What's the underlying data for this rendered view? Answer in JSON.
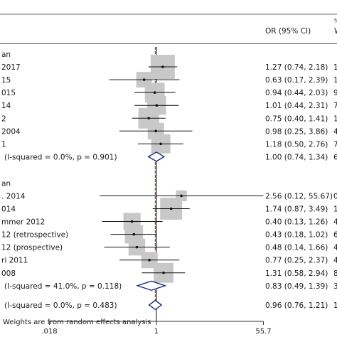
{
  "chart_data": {
    "type": "forest",
    "columns": {
      "estimate_header": "OR (95% CI)",
      "weight_header": "W",
      "weight_header_top": "%"
    },
    "log_scale": true,
    "xlim": [
      0.018,
      55.7
    ],
    "x_ticks": [
      {
        "value": 0.018,
        "label": ".018"
      },
      {
        "value": 1,
        "label": "1"
      },
      {
        "value": 55.7,
        "label": "55.7"
      }
    ],
    "null_line": 1,
    "overall_line": 0.96,
    "groups": [
      {
        "label": "an",
        "studies": [
          {
            "label": "2017",
            "or": 1.27,
            "lo": 0.74,
            "hi": 2.18,
            "ci_text": "1.27 (0.74, 2.18)",
            "weight_text": "1",
            "box": 1.0
          },
          {
            "label": "15",
            "or": 0.63,
            "lo": 0.17,
            "hi": 2.39,
            "ci_text": "0.63 (0.17, 2.39)",
            "weight_text": "1",
            "box": 0.45
          },
          {
            "label": "015",
            "or": 0.94,
            "lo": 0.44,
            "hi": 2.03,
            "ci_text": "0.94 (0.44, 2.03)",
            "weight_text": "9",
            "box": 0.72
          },
          {
            "label": "14",
            "or": 1.01,
            "lo": 0.44,
            "hi": 2.31,
            "ci_text": "1.01 (0.44, 2.31)",
            "weight_text": "7",
            "box": 0.66
          },
          {
            "label": "2",
            "or": 0.75,
            "lo": 0.4,
            "hi": 1.41,
            "ci_text": "0.75 (0.40, 1.41)",
            "weight_text": "1",
            "box": 0.78
          },
          {
            "label": "2004",
            "or": 0.98,
            "lo": 0.25,
            "hi": 3.86,
            "ci_text": "0.98 (0.25, 3.86)",
            "weight_text": "4",
            "box": 0.5
          },
          {
            "label": "1",
            "or": 1.18,
            "lo": 0.5,
            "hi": 2.76,
            "ci_text": "1.18 (0.50, 2.76)",
            "weight_text": "7",
            "box": 0.68
          }
        ],
        "subtotal": {
          "label": "(I-squared = 0.0%, p = 0.901)",
          "or": 1.0,
          "lo": 0.74,
          "hi": 1.34,
          "ci_text": "1.00 (0.74, 1.34)",
          "weight_text": "6"
        }
      },
      {
        "label": "an",
        "studies": [
          {
            "label": ". 2014",
            "or": 2.56,
            "lo": 0.12,
            "hi": 55.67,
            "ci_text": "2.56 (0.12, 55.67)",
            "weight_text": "0",
            "box": 0.15
          },
          {
            "label": "014",
            "or": 1.74,
            "lo": 0.87,
            "hi": 3.49,
            "ci_text": "1.74 (0.87, 3.49)",
            "weight_text": "1",
            "box": 0.86
          },
          {
            "label": "mmer 2012",
            "or": 0.4,
            "lo": 0.13,
            "hi": 1.26,
            "ci_text": "0.40 (0.13, 1.26)",
            "weight_text": "4",
            "box": 0.55
          },
          {
            "label": "12 (retrospective)",
            "or": 0.43,
            "lo": 0.18,
            "hi": 1.02,
            "ci_text": "0.43 (0.18, 1.02)",
            "weight_text": "6",
            "box": 0.62
          },
          {
            "label": "12 (prospective)",
            "or": 0.48,
            "lo": 0.14,
            "hi": 1.66,
            "ci_text": "0.48 (0.14, 1.66)",
            "weight_text": "4",
            "box": 0.52
          },
          {
            "label": "ri 2011",
            "or": 0.77,
            "lo": 0.25,
            "hi": 2.37,
            "ci_text": "0.77 (0.25, 2.37)",
            "weight_text": "4",
            "box": 0.5
          },
          {
            "label": "008",
            "or": 1.31,
            "lo": 0.58,
            "hi": 2.94,
            "ci_text": "1.31 (0.58, 2.94)",
            "weight_text": "8",
            "box": 0.72
          }
        ],
        "subtotal": {
          "label": "(I-squared = 41.0%, p = 0.118)",
          "or": 0.83,
          "lo": 0.49,
          "hi": 1.39,
          "ci_text": "0.83 (0.49, 1.39)",
          "weight_text": "3"
        }
      }
    ],
    "overall": {
      "label": "(I-squared = 0.0%, p = 0.483)",
      "or": 0.96,
      "lo": 0.76,
      "hi": 1.21,
      "ci_text": "0.96 (0.76, 1.21)",
      "weight_text": "1"
    },
    "footnote": "Weights are from random effects analysis",
    "colors": {
      "box": "#c8c8c8",
      "ci_line": "#111111",
      "diamond": "#1f2a7a",
      "overall_line": "#a0522d",
      "null_line": "#222222",
      "axis": "#333333"
    }
  }
}
